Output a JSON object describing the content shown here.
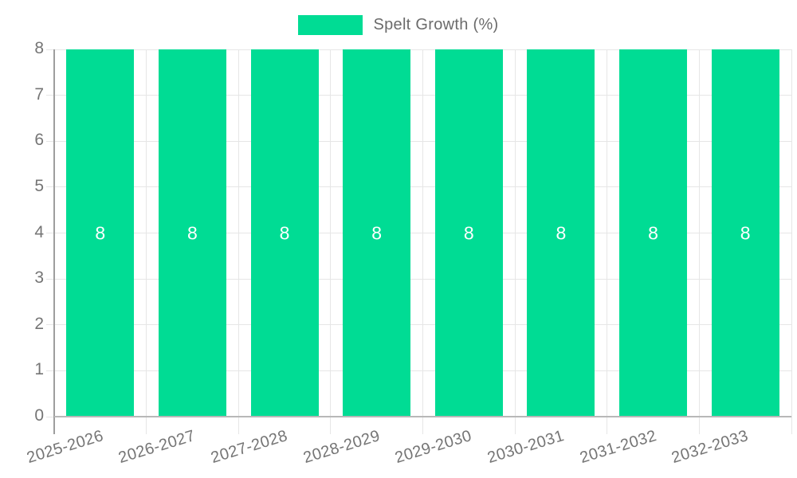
{
  "legend": {
    "label": "Spelt Growth (%)"
  },
  "chart_data": {
    "type": "bar",
    "title": "",
    "legend": {
      "label": "Spelt Growth (%)",
      "position": "top"
    },
    "categories": [
      "2025-2026",
      "2026-2027",
      "2027-2028",
      "2028-2029",
      "2029-2030",
      "2030-2031",
      "2031-2032",
      "2032-2033"
    ],
    "series": [
      {
        "name": "Spelt Growth (%)",
        "values": [
          8,
          8,
          8,
          8,
          8,
          8,
          8,
          8
        ]
      }
    ],
    "bar_value_labels": [
      "8",
      "8",
      "8",
      "8",
      "8",
      "8",
      "8",
      "8"
    ],
    "xlabel": "",
    "ylabel": "",
    "ylim": [
      0,
      8
    ],
    "yticks": [
      0,
      1,
      2,
      3,
      4,
      5,
      6,
      7,
      8
    ],
    "grid": true,
    "x_label_rotation_deg": -17,
    "colors": {
      "bar": "#00DC94",
      "bar_label": "#FFFFFF",
      "axis_text": "#757575",
      "legend_text": "#6B6B6B",
      "gridline": "#E6E6E6",
      "y_axis_line": "#9E9E9E",
      "x_axis_line": "#B8B8B8",
      "background": "#FFFFFF"
    }
  }
}
